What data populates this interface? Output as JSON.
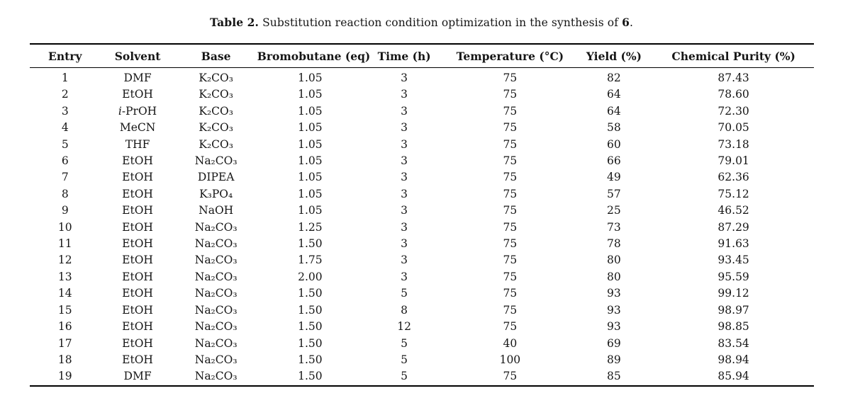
{
  "caption": {
    "label": "Table 2.",
    "text": "Substitution reaction condition optimization in the synthesis of",
    "compound": "6",
    "suffix": "."
  },
  "table": {
    "columns": [
      "Entry",
      "Solvent",
      "Base",
      "Bromobutane (eq)",
      "Time (h)",
      "Temperature (°C)",
      "Yield (%)",
      "Chemical Purity (%)"
    ],
    "rows": [
      [
        "1",
        "DMF",
        "K₂CO₃",
        "1.05",
        "3",
        "75",
        "82",
        "87.43"
      ],
      [
        "2",
        "EtOH",
        "K₂CO₃",
        "1.05",
        "3",
        "75",
        "64",
        "78.60"
      ],
      [
        "3",
        "i-PrOH",
        "K₂CO₃",
        "1.05",
        "3",
        "75",
        "64",
        "72.30"
      ],
      [
        "4",
        "MeCN",
        "K₂CO₃",
        "1.05",
        "3",
        "75",
        "58",
        "70.05"
      ],
      [
        "5",
        "THF",
        "K₂CO₃",
        "1.05",
        "3",
        "75",
        "60",
        "73.18"
      ],
      [
        "6",
        "EtOH",
        "Na₂CO₃",
        "1.05",
        "3",
        "75",
        "66",
        "79.01"
      ],
      [
        "7",
        "EtOH",
        "DIPEA",
        "1.05",
        "3",
        "75",
        "49",
        "62.36"
      ],
      [
        "8",
        "EtOH",
        "K₃PO₄",
        "1.05",
        "3",
        "75",
        "57",
        "75.12"
      ],
      [
        "9",
        "EtOH",
        "NaOH",
        "1.05",
        "3",
        "75",
        "25",
        "46.52"
      ],
      [
        "10",
        "EtOH",
        "Na₂CO₃",
        "1.25",
        "3",
        "75",
        "73",
        "87.29"
      ],
      [
        "11",
        "EtOH",
        "Na₂CO₃",
        "1.50",
        "3",
        "75",
        "78",
        "91.63"
      ],
      [
        "12",
        "EtOH",
        "Na₂CO₃",
        "1.75",
        "3",
        "75",
        "80",
        "93.45"
      ],
      [
        "13",
        "EtOH",
        "Na₂CO₃",
        "2.00",
        "3",
        "75",
        "80",
        "95.59"
      ],
      [
        "14",
        "EtOH",
        "Na₂CO₃",
        "1.50",
        "5",
        "75",
        "93",
        "99.12"
      ],
      [
        "15",
        "EtOH",
        "Na₂CO₃",
        "1.50",
        "8",
        "75",
        "93",
        "98.97"
      ],
      [
        "16",
        "EtOH",
        "Na₂CO₃",
        "1.50",
        "12",
        "75",
        "93",
        "98.85"
      ],
      [
        "17",
        "EtOH",
        "Na₂CO₃",
        "1.50",
        "5",
        "40",
        "69",
        "83.54"
      ],
      [
        "18",
        "EtOH",
        "Na₂CO₃",
        "1.50",
        "5",
        "100",
        "89",
        "98.94"
      ],
      [
        "19",
        "DMF",
        "Na₂CO₃",
        "1.50",
        "5",
        "75",
        "85",
        "85.94"
      ]
    ]
  },
  "colors": {
    "text": "#161616",
    "rule": "#000000",
    "background": "#ffffff"
  }
}
